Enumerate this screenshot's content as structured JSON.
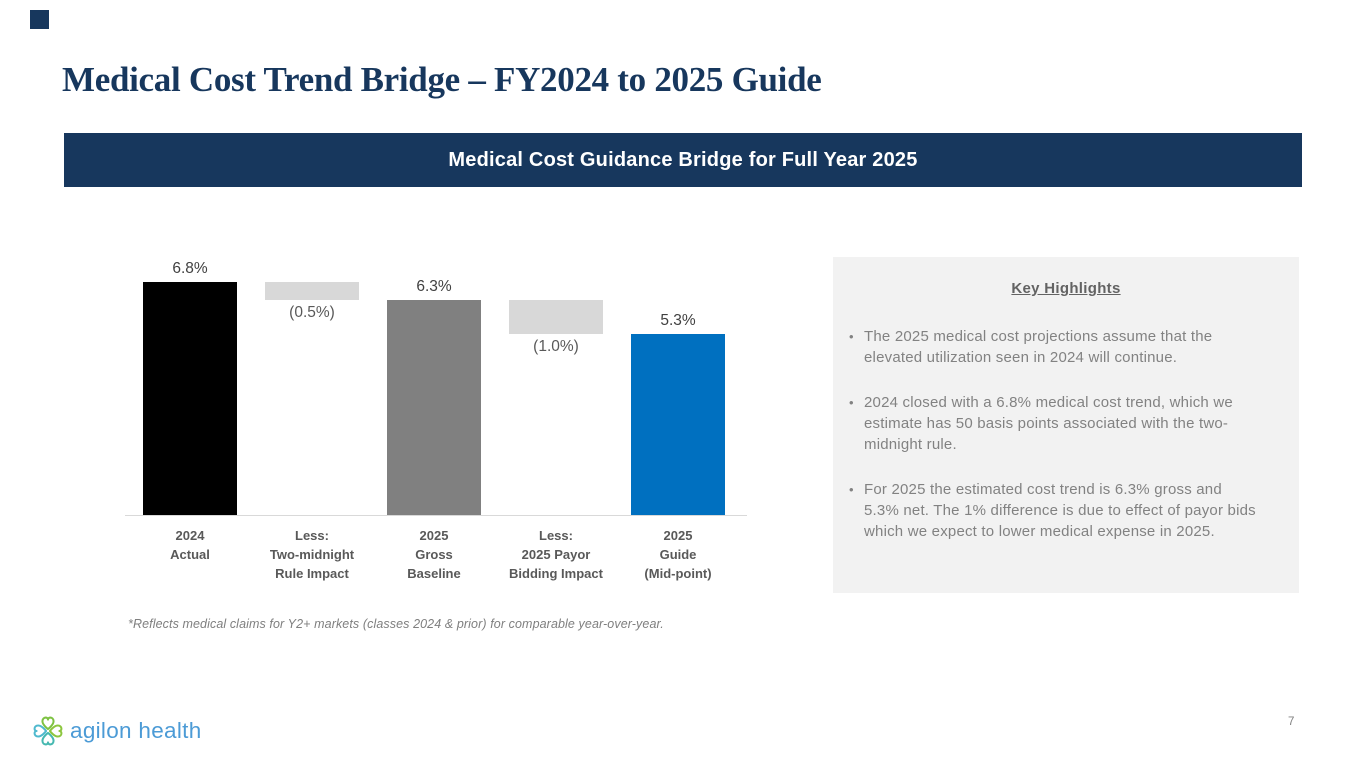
{
  "slide": {
    "title": "Medical Cost Trend Bridge – FY2024 to 2025 Guide",
    "banner_title": "Medical Cost Guidance Bridge for Full Year 2025",
    "footnote": "*Reflects medical claims for Y2+ markets (classes 2024 & prior) for comparable year-over-year.",
    "page_number": "7",
    "logo": {
      "text": "agilon health",
      "icon": "clover-icon"
    }
  },
  "chart_data": {
    "type": "bar",
    "subtype": "waterfall",
    "title": "Medical Cost Guidance Bridge for Full Year 2025",
    "unit": "percent",
    "ylim": [
      0,
      7.6
    ],
    "gridlines": false,
    "axis_line": true,
    "legend": "none",
    "bars": [
      {
        "category": "2024\nActual",
        "value": 6.8,
        "kind": "total",
        "label": "6.8%",
        "color": "#000000"
      },
      {
        "category": "Less:\nTwo-midnight\nRule Impact",
        "value": -0.5,
        "kind": "delta",
        "label": "(0.5%)",
        "color": "#D8D8D8"
      },
      {
        "category": "2025\nGross\nBaseline",
        "value": 6.3,
        "kind": "total",
        "label": "6.3%",
        "color": "#808080"
      },
      {
        "category": "Less:\n2025 Payor\nBidding Impact",
        "value": -1.0,
        "kind": "delta",
        "label": "(1.0%)",
        "color": "#D8D8D8"
      },
      {
        "category": "2025\nGuide\n(Mid-point)",
        "value": 5.3,
        "kind": "total",
        "label": "5.3%",
        "color": "#0070C0"
      }
    ]
  },
  "highlights": {
    "title": "Key Highlights",
    "bullets": [
      "The 2025 medical cost projections assume that the elevated utilization seen in 2024 will continue.",
      "2024 closed with a 6.8% medical cost trend, which we estimate has 50 basis points associated with the two-midnight rule.",
      "For 2025 the estimated cost trend is 6.3% gross and 5.3% net.  The 1% difference is due to effect of payor bids which we expect to lower medical expense in 2025."
    ],
    "bullet_marker": "•"
  },
  "colors": {
    "navy": "#17375D",
    "bar_black": "#000000",
    "bar_gray": "#808080",
    "bar_light_gray": "#D8D8D8",
    "bar_blue": "#0070C0",
    "axis_gray": "#D9D9D9",
    "label_gray": "#595959",
    "highlight_text": "#828282",
    "box_bg": "#F2F2F2",
    "logo_blue": "#4C9BD6",
    "logo_green": "#7DC242",
    "logo_teal": "#45B8B0"
  }
}
